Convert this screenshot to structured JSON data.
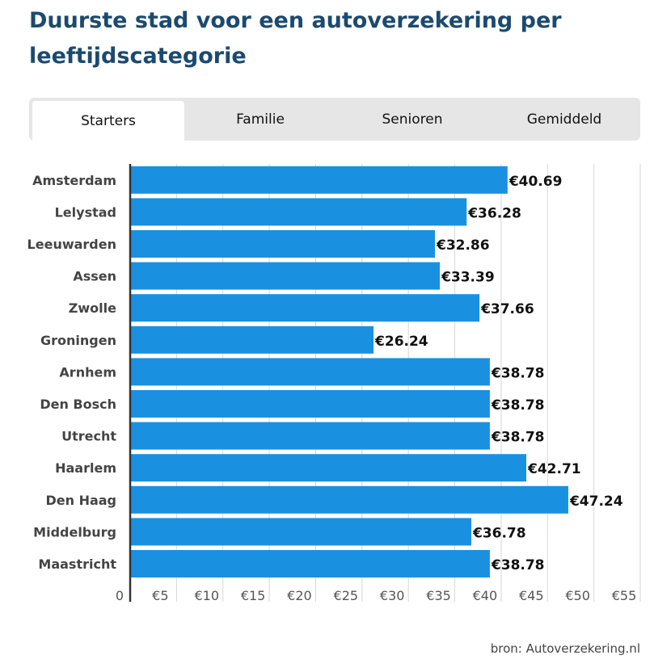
{
  "title": "Duurste stad voor een autoverzekering per leeftijdscategorie",
  "tabs": [
    {
      "label": "Starters",
      "active": true
    },
    {
      "label": "Familie",
      "active": false
    },
    {
      "label": "Senioren",
      "active": false
    },
    {
      "label": "Gemiddeld",
      "active": false
    }
  ],
  "source": "bron: Autoverzekering.nl",
  "colors": {
    "bar": "#1a90e0",
    "title": "#1c4a6e",
    "tab_bg": "#e6e6e6"
  },
  "chart_data": {
    "type": "bar",
    "orientation": "horizontal",
    "categories": [
      "Amsterdam",
      "Lelystad",
      "Leeuwarden",
      "Assen",
      "Zwolle",
      "Groningen",
      "Arnhem",
      "Den Bosch",
      "Utrecht",
      "Haarlem",
      "Den Haag",
      "Middelburg",
      "Maastricht"
    ],
    "values": [
      40.69,
      36.28,
      32.86,
      33.39,
      37.66,
      26.24,
      38.78,
      38.78,
      38.78,
      42.71,
      47.24,
      36.78,
      38.78
    ],
    "value_labels": [
      "€40.69",
      "€36.28",
      "€32.86",
      "€33.39",
      "€37.66",
      "€26.24",
      "€38.78",
      "€38.78",
      "€38.78",
      "€42.71",
      "€47.24",
      "€36.78",
      "€38.78"
    ],
    "x_ticks": [
      "0",
      "€5",
      "€10",
      "€15",
      "€20",
      "€25",
      "€30",
      "€35",
      "€40",
      "€45",
      "€50",
      "€55"
    ],
    "xlim": [
      0,
      55
    ],
    "grid": true
  }
}
